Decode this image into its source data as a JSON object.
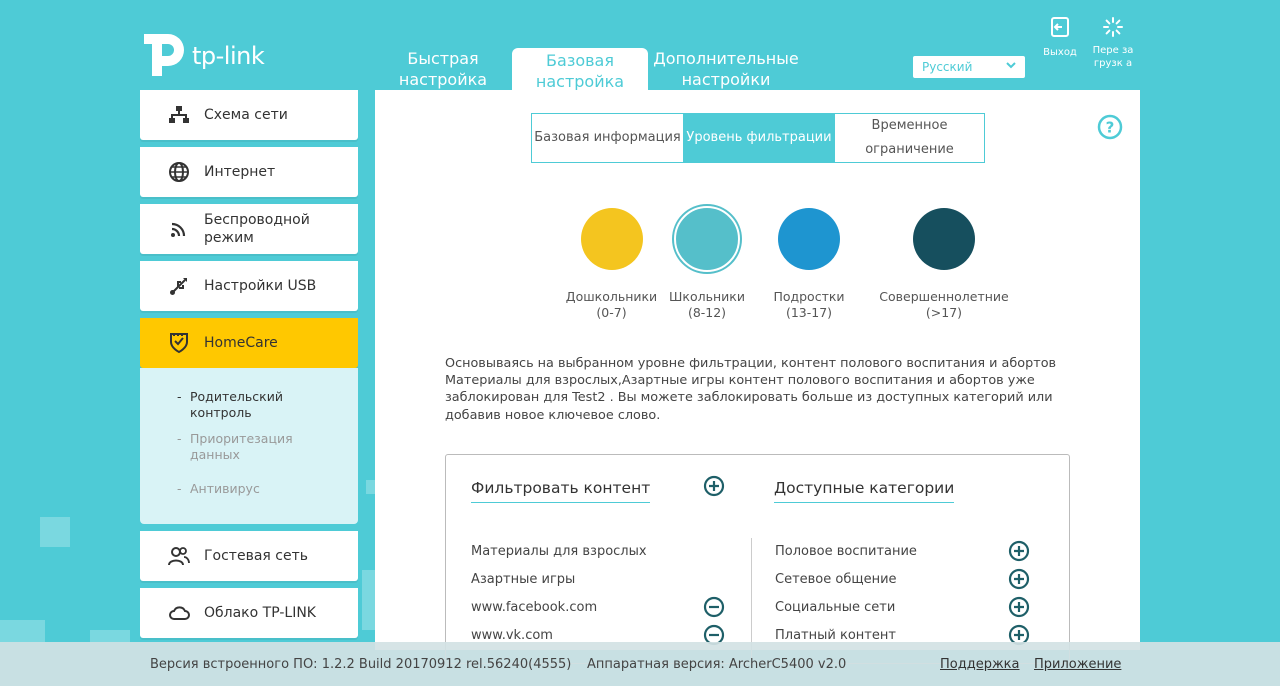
{
  "brand": {
    "logo_text": "tp-link"
  },
  "top_tabs": [
    {
      "label": "Быстрая настройка"
    },
    {
      "label": "Базовая настройка"
    },
    {
      "label": "Дополнительные настройки"
    }
  ],
  "language": {
    "selected": "Русский"
  },
  "top_icons": {
    "logout": "Выход",
    "reboot": "Пере загрузк а"
  },
  "sidebar": {
    "items": [
      {
        "label": "Схема сети",
        "icon": "network-map-icon"
      },
      {
        "label": "Интернет",
        "icon": "globe-icon"
      },
      {
        "label": "Беспроводной режим",
        "icon": "wireless-icon"
      },
      {
        "label": "Настройки USB",
        "icon": "usb-icon"
      },
      {
        "label": "HomeCare",
        "icon": "homecare-shield-icon"
      },
      {
        "label": "Гостевая сеть",
        "icon": "guest-users-icon"
      },
      {
        "label": "Облако TP-LINK",
        "icon": "cloud-icon"
      }
    ],
    "submenu": [
      {
        "label": "Родительский контроль"
      },
      {
        "label": "Приоритезация данных"
      },
      {
        "label": "Антивирус"
      }
    ]
  },
  "subtabs": [
    {
      "label": "Базовая информация"
    },
    {
      "label": "Уровень фильтрации"
    },
    {
      "label": "Временное ограничение"
    }
  ],
  "levels": [
    {
      "name": "Дошкольники",
      "range": "(0-7)",
      "color": "#f4c51f"
    },
    {
      "name": "Школьники",
      "range": "(8-12)",
      "color": "#55bfca"
    },
    {
      "name": "Подростки",
      "range": "(13-17)",
      "color": "#1e95d0"
    },
    {
      "name": "Совершеннолетние",
      "range": "(>17)",
      "color": "#164f5e"
    }
  ],
  "description": "Основываясь на выбранном уровне фильтрации, контент полового воспитания и абортов Материалы для взрослых,Азартные игры контент полового воспитания и абортов уже заблокирован для Test2 . Вы можете заблокировать больше из доступных категорий или добавив новое ключевое слово.",
  "filter_box": {
    "filter_title": "Фильтровать контент",
    "available_title": "Доступные категории",
    "filtered": [
      {
        "label": "Материалы для взрослых",
        "removable": false
      },
      {
        "label": "Азартные игры",
        "removable": false
      },
      {
        "label": "www.facebook.com",
        "removable": true
      },
      {
        "label": "www.vk.com",
        "removable": true
      }
    ],
    "available": [
      {
        "label": "Половое воспитание"
      },
      {
        "label": "Сетевое общение"
      },
      {
        "label": "Социальные сети"
      },
      {
        "label": "Платный контент"
      }
    ]
  },
  "footer": {
    "firmware": "Версия встроенного ПО: 1.2.2 Build 20170912 rel.56240(4555)",
    "hardware": "Аппаратная версия: ArcherC5400 v2.0",
    "support": "Поддержка",
    "app": "Приложение"
  },
  "colors": {
    "accent": "#4ecbd6",
    "active_menu": "#ffc800",
    "dark_teal": "#1e5f68"
  }
}
